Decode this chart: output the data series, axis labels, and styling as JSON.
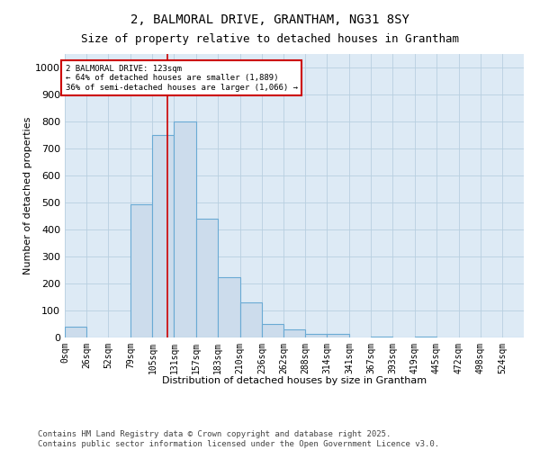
{
  "title": "2, BALMORAL DRIVE, GRANTHAM, NG31 8SY",
  "subtitle": "Size of property relative to detached houses in Grantham",
  "xlabel": "Distribution of detached houses by size in Grantham",
  "ylabel": "Number of detached properties",
  "bin_edges": [
    0,
    26,
    52,
    79,
    105,
    131,
    157,
    183,
    210,
    236,
    262,
    288,
    314,
    341,
    367,
    393,
    419,
    445,
    472,
    498,
    524,
    550
  ],
  "bin_labels": [
    "0sqm",
    "26sqm",
    "52sqm",
    "79sqm",
    "105sqm",
    "131sqm",
    "157sqm",
    "183sqm",
    "210sqm",
    "236sqm",
    "262sqm",
    "288sqm",
    "314sqm",
    "341sqm",
    "367sqm",
    "393sqm",
    "419sqm",
    "445sqm",
    "472sqm",
    "498sqm",
    "524sqm"
  ],
  "bar_heights": [
    40,
    0,
    0,
    495,
    750,
    800,
    440,
    225,
    130,
    50,
    30,
    15,
    12,
    0,
    5,
    0,
    5,
    0,
    0,
    0,
    0
  ],
  "bar_color": "#ccdcec",
  "bar_edge_color": "#6aaad4",
  "vline_x": 123,
  "vline_color": "#cc0000",
  "annotation_box_text": "2 BALMORAL DRIVE: 123sqm\n← 64% of detached houses are smaller (1,889)\n36% of semi-detached houses are larger (1,066) →",
  "annotation_box_color": "#cc0000",
  "annotation_box_bg": "#ffffff",
  "ylim": [
    0,
    1050
  ],
  "yticks": [
    0,
    100,
    200,
    300,
    400,
    500,
    600,
    700,
    800,
    900,
    1000
  ],
  "grid_color": "#b8cfe0",
  "bg_color": "#ddeaf5",
  "footer_text": "Contains HM Land Registry data © Crown copyright and database right 2025.\nContains public sector information licensed under the Open Government Licence v3.0.",
  "title_fontsize": 10,
  "subtitle_fontsize": 9,
  "label_fontsize": 8,
  "tick_fontsize": 7,
  "footer_fontsize": 6.5
}
